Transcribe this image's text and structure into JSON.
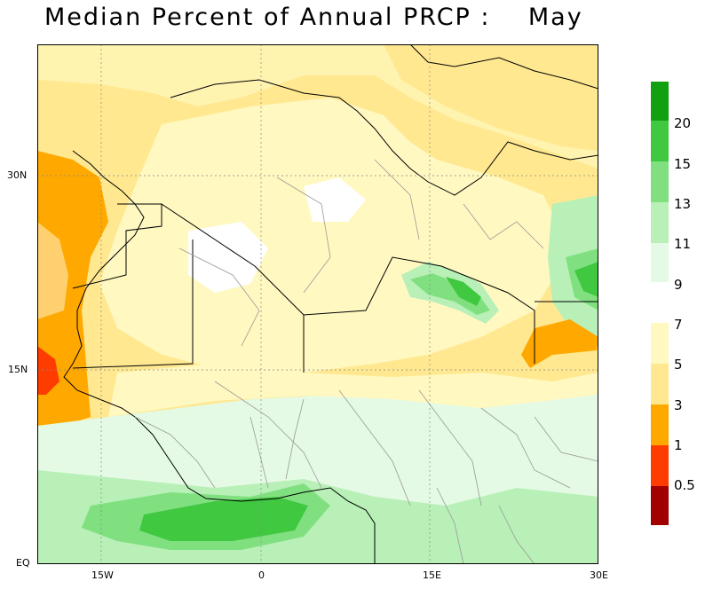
{
  "title": "Median Percent of Annual PRCP :    May",
  "axes": {
    "lat_labels": [
      "30N",
      "15N",
      "EQ"
    ],
    "lon_labels": [
      "15W",
      "0",
      "15E",
      "30E"
    ]
  },
  "legend": {
    "labels": [
      "20",
      "15",
      "13",
      "11",
      "9",
      "7",
      "5",
      "3",
      "1",
      "0.5"
    ],
    "colors": [
      "#10a010",
      "#40c840",
      "#80e080",
      "#b8f0b8",
      "#e4fae4",
      "#fff8c0",
      "#ffe890",
      "#ffa800",
      "#ff3c00",
      "#a00000"
    ]
  }
}
